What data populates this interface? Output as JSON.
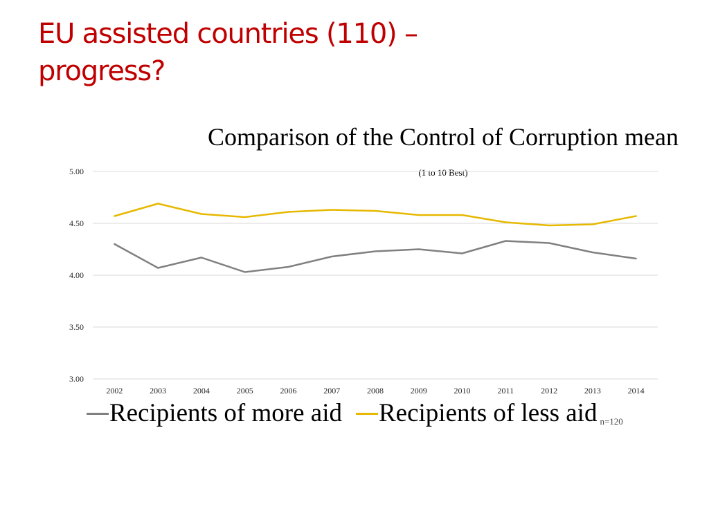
{
  "slide": {
    "title": "EU assisted countries (110) – progress?"
  },
  "chart_data": {
    "type": "line",
    "title": "Comparison of the Control of Corruption mean",
    "title_main": "Comparison of the Control of Corruption mean",
    "title_note": "(1 to 10 Best)",
    "xlabel": "",
    "ylabel": "",
    "x": [
      "2002",
      "2003",
      "2004",
      "2005",
      "2006",
      "2007",
      "2008",
      "2009",
      "2010",
      "2011",
      "2012",
      "2013",
      "2014"
    ],
    "ylim": [
      3.0,
      5.0
    ],
    "yticks": [
      "3.00",
      "3.50",
      "4.00",
      "4.50",
      "5.00"
    ],
    "grid": true,
    "legend_position": "bottom",
    "series": [
      {
        "name": "Recipients of more aid",
        "color": "#808080",
        "values": [
          4.3,
          4.07,
          4.17,
          4.03,
          4.08,
          4.18,
          4.23,
          4.25,
          4.21,
          4.33,
          4.31,
          4.22,
          4.16
        ]
      },
      {
        "name": "Recipients of less aid",
        "color": "#e6b800",
        "values": [
          4.57,
          4.69,
          4.59,
          4.56,
          4.61,
          4.63,
          4.62,
          4.58,
          4.58,
          4.51,
          4.48,
          4.49,
          4.57
        ]
      }
    ],
    "annotation": "n=120"
  }
}
